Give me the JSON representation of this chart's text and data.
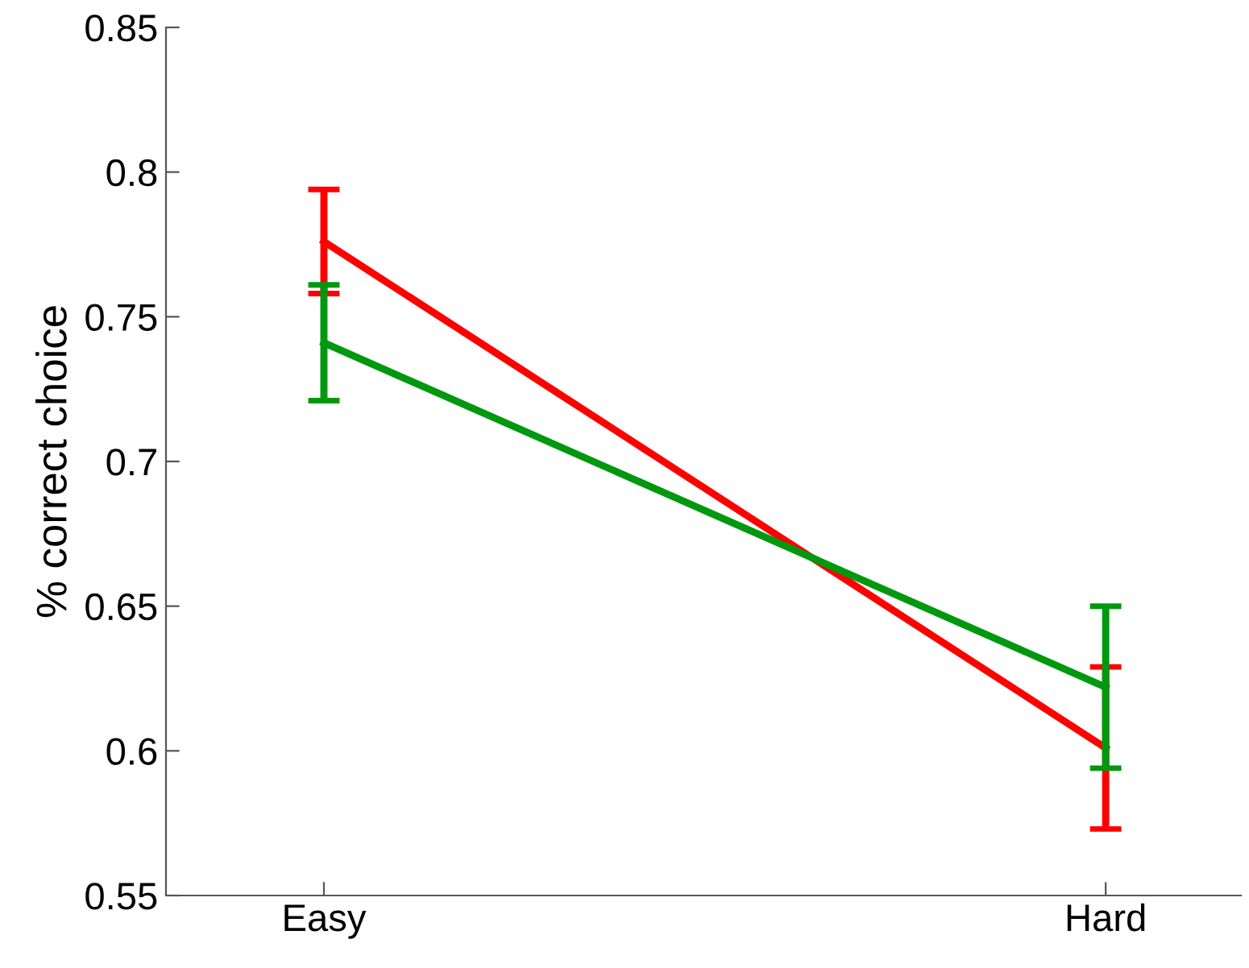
{
  "chart_data": {
    "type": "line",
    "ylabel": "% correct choice",
    "categories": [
      "Easy",
      "Hard"
    ],
    "series": [
      {
        "color": "#ff0000",
        "values": [
          0.776,
          0.601
        ],
        "errors": [
          0.018,
          0.028
        ]
      },
      {
        "color": "#00980f",
        "values": [
          0.741,
          0.622
        ],
        "errors": [
          0.02,
          0.028
        ]
      }
    ],
    "ylim": [
      0.55,
      0.85
    ],
    "yticks": [
      0.55,
      0.6,
      0.65,
      0.7,
      0.75,
      0.8,
      0.85
    ],
    "grid": false,
    "marker": "none",
    "line_style": "solid"
  }
}
